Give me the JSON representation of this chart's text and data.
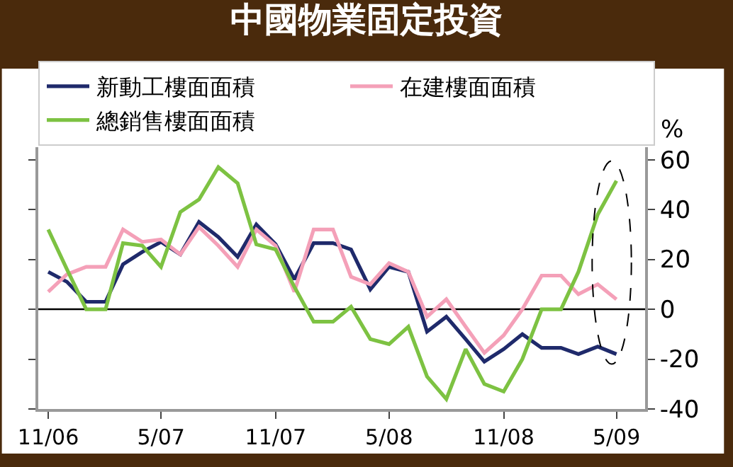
{
  "chart_data": {
    "type": "line",
    "title": "中國物業固定投資",
    "ylabel": "%",
    "x": [
      "2006-11",
      "2006-12",
      "2007-01",
      "2007-02",
      "2007-03",
      "2007-04",
      "2007-05",
      "2007-06",
      "2007-07",
      "2007-08",
      "2007-09",
      "2007-10",
      "2007-11",
      "2007-12",
      "2008-01",
      "2008-02",
      "2008-03",
      "2008-04",
      "2008-05",
      "2008-06",
      "2008-07",
      "2008-08",
      "2008-09",
      "2008-10",
      "2008-11",
      "2008-12",
      "2009-01",
      "2009-02",
      "2009-03",
      "2009-04",
      "2009-05"
    ],
    "xlim": [
      "2006-10-16",
      "2009-06-16"
    ],
    "xticks": [
      {
        "value": "2006-11",
        "label": "11/06"
      },
      {
        "value": "2007-05",
        "label": "5/07"
      },
      {
        "value": "2007-11",
        "label": "11/07"
      },
      {
        "value": "2008-05",
        "label": "5/08"
      },
      {
        "value": "2008-11",
        "label": "11/08"
      },
      {
        "value": "2009-05",
        "label": "5/09"
      }
    ],
    "ylim": [
      -40,
      65
    ],
    "yticks": [
      -40,
      -20,
      0,
      20,
      40,
      60
    ],
    "series": [
      {
        "name": "新動工樓面面積",
        "color": "#1f2a6b",
        "values": [
          15,
          11,
          3,
          3,
          18,
          23,
          27,
          22,
          35,
          29,
          21,
          34,
          26,
          12,
          26.5,
          26.5,
          24,
          8,
          17,
          15,
          -9,
          -3,
          -12,
          -21,
          -16,
          -10,
          -15.5,
          -15.5,
          -18,
          -15,
          -18
        ]
      },
      {
        "name": "在建樓面面積",
        "color": "#f4a0b8",
        "values": [
          7,
          14,
          17,
          17,
          32,
          27,
          28,
          22,
          33,
          25.5,
          17,
          32,
          25.5,
          7,
          32,
          32,
          13,
          10,
          18.5,
          15,
          -3,
          4,
          -7,
          -17.5,
          -10.5,
          0,
          13.5,
          13.5,
          6,
          10,
          4
        ]
      },
      {
        "name": "總銷售樓面面積",
        "color": "#7dc242",
        "values": [
          32,
          16,
          0,
          0,
          26.5,
          25.5,
          17,
          39,
          44,
          57,
          50.5,
          26,
          24,
          9,
          -5,
          -5,
          1,
          -12,
          -14,
          -7,
          -27,
          -36,
          -16,
          -30,
          -33,
          -20,
          0,
          0,
          15,
          38,
          51.5
        ]
      }
    ],
    "ref_lines": [
      {
        "axis": "y",
        "value": 0,
        "color": "#000000"
      }
    ],
    "legend": "top left",
    "grid": false,
    "marker": "none",
    "line_style": "solid"
  }
}
